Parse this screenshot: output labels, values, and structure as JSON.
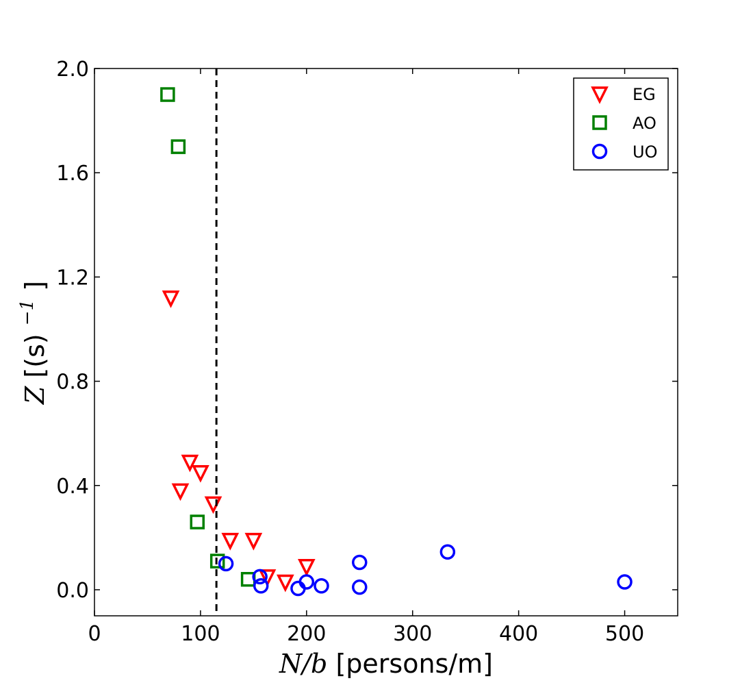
{
  "chart_data": {
    "type": "scatter",
    "xlabel": {
      "var": "N/b",
      "unit": "[persons/m]"
    },
    "ylabel": {
      "var": "Z",
      "unit_prefix": "[(s)",
      "exponent": "−1",
      "unit_suffix": "]"
    },
    "xlim": [
      0,
      550
    ],
    "ylim": [
      -0.1,
      2.0
    ],
    "x_ticks": [
      0,
      100,
      200,
      300,
      400,
      500
    ],
    "y_ticks": [
      0.0,
      0.4,
      0.8,
      1.2,
      1.6,
      2.0
    ],
    "x_tick_labels": [
      "0",
      "100",
      "200",
      "300",
      "400",
      "500"
    ],
    "y_tick_labels": [
      "0.0",
      "0.4",
      "0.8",
      "1.2",
      "1.6",
      "2.0"
    ],
    "reference_line": {
      "x": 115,
      "style": "dashed",
      "color": "#000000"
    },
    "legend_position": "top-right",
    "grid": false,
    "series": [
      {
        "name": "EG",
        "marker": "triangle-down",
        "color": "#ff0000",
        "points": [
          [
            72,
            1.12
          ],
          [
            90,
            0.49
          ],
          [
            100,
            0.45
          ],
          [
            81,
            0.38
          ],
          [
            112,
            0.33
          ],
          [
            128,
            0.19
          ],
          [
            150,
            0.19
          ],
          [
            163,
            0.05
          ],
          [
            180,
            0.03
          ],
          [
            200,
            0.09
          ]
        ]
      },
      {
        "name": "AO",
        "marker": "square",
        "color": "#008000",
        "points": [
          [
            69,
            1.9
          ],
          [
            79,
            1.7
          ],
          [
            97,
            0.26
          ],
          [
            116,
            0.11
          ],
          [
            145,
            0.04
          ]
        ]
      },
      {
        "name": "UO",
        "marker": "circle",
        "color": "#0000ff",
        "points": [
          [
            124,
            0.1
          ],
          [
            156,
            0.05
          ],
          [
            157,
            0.015
          ],
          [
            192,
            0.005
          ],
          [
            200,
            0.03
          ],
          [
            214,
            0.015
          ],
          [
            250,
            0.105
          ],
          [
            250,
            0.01
          ],
          [
            333,
            0.145
          ],
          [
            500,
            0.03
          ]
        ]
      }
    ]
  }
}
